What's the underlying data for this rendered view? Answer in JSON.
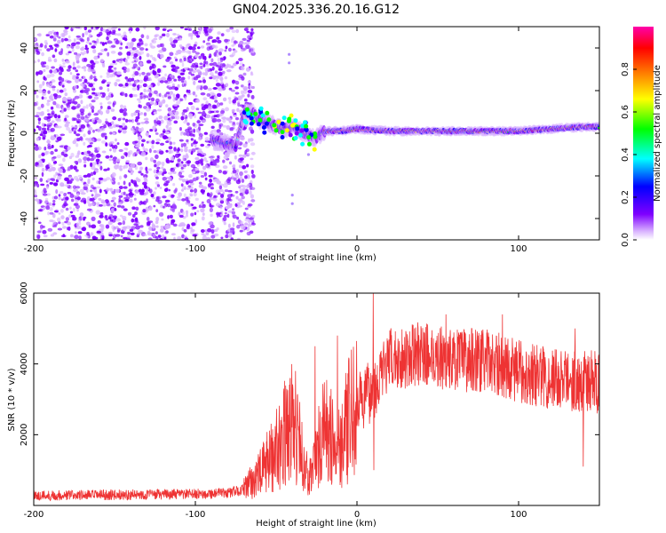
{
  "chart_data": [
    {
      "type": "heatmap",
      "title": "GN04.2025.336.20.16.G12",
      "xlabel": "Height of straight line (km)",
      "ylabel": "Frequency (Hz)",
      "xlim": [
        -200,
        150
      ],
      "ylim": [
        -50,
        50
      ],
      "xticks": [
        "-200",
        "-100",
        "0",
        "100"
      ],
      "yticks": [
        "-40",
        "-20",
        "0",
        "20",
        "40"
      ],
      "colorbar": {
        "label": "Normalized spectral amplitude",
        "range": [
          0.0,
          1.0
        ],
        "ticks": [
          "0.0",
          "0.2",
          "0.4",
          "0.6",
          "0.8"
        ],
        "colors": [
          "#ffffff",
          "#d9b3ff",
          "#7f00ff",
          "#0000ff",
          "#00ffff",
          "#00ff00",
          "#ffff00",
          "#ff7f00",
          "#ff0000",
          "#ff00aa"
        ]
      },
      "noise_region": {
        "x_range": [
          -200,
          -70
        ],
        "y_range": [
          -50,
          50
        ]
      },
      "signal_track": [
        {
          "x": -90,
          "y": -3
        },
        {
          "x": -80,
          "y": -5
        },
        {
          "x": -75,
          "y": -6
        },
        {
          "x": -70,
          "y": 9
        },
        {
          "x": -65,
          "y": 10
        },
        {
          "x": -60,
          "y": 6
        },
        {
          "x": -55,
          "y": 5
        },
        {
          "x": -50,
          "y": 3
        },
        {
          "x": -45,
          "y": 2
        },
        {
          "x": -40,
          "y": 3
        },
        {
          "x": -35,
          "y": 1
        },
        {
          "x": -30,
          "y": -1
        },
        {
          "x": -25,
          "y": -2
        },
        {
          "x": -20,
          "y": 1
        },
        {
          "x": -10,
          "y": 1
        },
        {
          "x": 0,
          "y": 2
        },
        {
          "x": 20,
          "y": 1
        },
        {
          "x": 40,
          "y": 1
        },
        {
          "x": 60,
          "y": 1
        },
        {
          "x": 80,
          "y": 1
        },
        {
          "x": 100,
          "y": 1
        },
        {
          "x": 120,
          "y": 2
        },
        {
          "x": 140,
          "y": 3
        },
        {
          "x": 150,
          "y": 3
        }
      ]
    },
    {
      "type": "line",
      "xlabel": "Height of straight line (km)",
      "ylabel": "SNR (10 * v/v)",
      "xlim": [
        -200,
        150
      ],
      "ylim": [
        0,
        6000
      ],
      "xticks": [
        "-200",
        "-100",
        "0",
        "100"
      ],
      "yticks": [
        "2000",
        "4000",
        "6000"
      ],
      "series": [
        {
          "name": "SNR",
          "color": "#ee3333",
          "envelope_x": [
            -200,
            -150,
            -100,
            -80,
            -70,
            -60,
            -50,
            -40,
            -35,
            -30,
            -25,
            -20,
            -15,
            -10,
            -5,
            0,
            10,
            20,
            30,
            40,
            60,
            80,
            100,
            120,
            140,
            150
          ],
          "envelope_y": [
            280,
            300,
            320,
            350,
            450,
            900,
            1600,
            2400,
            1600,
            700,
            1400,
            2200,
            1800,
            1800,
            2400,
            2800,
            3300,
            4100,
            4200,
            4300,
            4100,
            4100,
            3800,
            3600,
            3500,
            3500
          ],
          "spikes": [
            {
              "x": -38,
              "y": 3800
            },
            {
              "x": -26,
              "y": 4500
            },
            {
              "x": -12,
              "y": 4800
            },
            {
              "x": 10,
              "y": 6000
            },
            {
              "x": 10.5,
              "y": 1000
            },
            {
              "x": 55,
              "y": 5400
            },
            {
              "x": 71,
              "y": 5000
            },
            {
              "x": 90,
              "y": 5400
            },
            {
              "x": 140,
              "y": 1100
            },
            {
              "x": 135,
              "y": 5000
            }
          ]
        }
      ]
    }
  ]
}
